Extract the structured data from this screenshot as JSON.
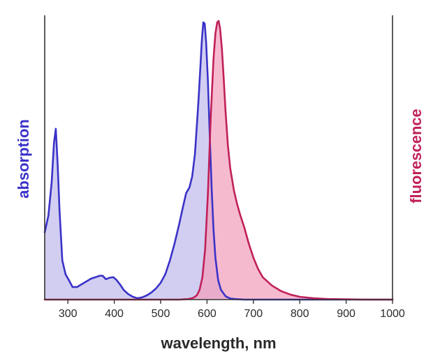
{
  "chart_data": {
    "type": "area",
    "title": "",
    "xlabel": "wavelength, nm",
    "ylabel_left": "absorption",
    "ylabel_right": "fluorescence",
    "xlim": [
      250,
      1000
    ],
    "ylim": [
      0,
      1
    ],
    "x_ticks": [
      300,
      400,
      500,
      600,
      700,
      800,
      900,
      1000
    ],
    "colors": {
      "absorption_line": "#3a32c8",
      "absorption_fill": "#c9c6ef",
      "fluorescence_line": "#c0205a",
      "fluorescence_fill": "#f3a0bd",
      "axis": "#333333"
    },
    "series": [
      {
        "key": "absorption",
        "x": [
          250,
          258,
          265,
          270,
          274,
          278,
          282,
          288,
          295,
          302,
          310,
          320,
          335,
          350,
          360,
          368,
          375,
          382,
          390,
          398,
          405,
          412,
          420,
          430,
          440,
          450,
          460,
          470,
          480,
          490,
          500,
          510,
          520,
          530,
          540,
          548,
          555,
          562,
          568,
          574,
          578,
          582,
          586,
          589,
          592,
          595,
          598,
          602,
          606,
          610,
          614,
          618,
          624,
          630,
          640,
          650,
          660,
          680,
          700,
          750,
          800,
          850,
          900,
          1000
        ],
        "y": [
          0.24,
          0.3,
          0.42,
          0.56,
          0.61,
          0.48,
          0.32,
          0.14,
          0.09,
          0.07,
          0.045,
          0.045,
          0.06,
          0.075,
          0.08,
          0.085,
          0.085,
          0.073,
          0.078,
          0.08,
          0.07,
          0.055,
          0.035,
          0.02,
          0.01,
          0.005,
          0.008,
          0.015,
          0.025,
          0.04,
          0.06,
          0.09,
          0.14,
          0.2,
          0.27,
          0.33,
          0.38,
          0.4,
          0.44,
          0.52,
          0.62,
          0.72,
          0.84,
          0.93,
          0.99,
          0.985,
          0.92,
          0.78,
          0.58,
          0.4,
          0.25,
          0.15,
          0.07,
          0.035,
          0.012,
          0.004,
          0.002,
          0,
          0,
          0,
          0,
          0,
          0,
          0
        ]
      },
      {
        "key": "fluorescence",
        "x": [
          250,
          540,
          560,
          570,
          578,
          584,
          590,
          596,
          602,
          608,
          614,
          618,
          622,
          625,
          628,
          632,
          636,
          640,
          645,
          650,
          658,
          665,
          672,
          680,
          690,
          700,
          710,
          720,
          740,
          760,
          780,
          800,
          830,
          860,
          900,
          950,
          1000
        ],
        "y": [
          0,
          0,
          0.002,
          0.006,
          0.015,
          0.035,
          0.08,
          0.18,
          0.38,
          0.65,
          0.86,
          0.95,
          0.99,
          0.995,
          0.97,
          0.9,
          0.79,
          0.67,
          0.55,
          0.47,
          0.39,
          0.34,
          0.3,
          0.26,
          0.2,
          0.15,
          0.11,
          0.08,
          0.05,
          0.03,
          0.018,
          0.01,
          0.005,
          0.002,
          0.001,
          0,
          0
        ]
      }
    ]
  }
}
